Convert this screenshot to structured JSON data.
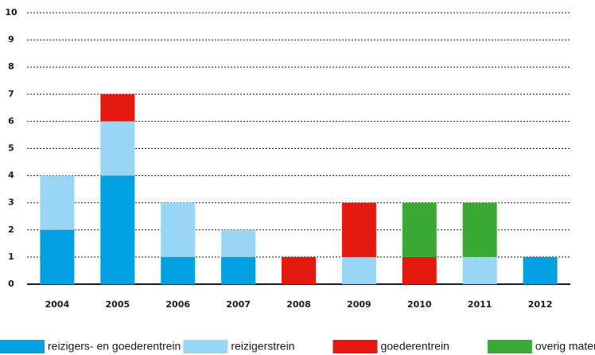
{
  "chart_data": {
    "type": "stacked-bar",
    "categories": [
      "2004",
      "2005",
      "2006",
      "2007",
      "2008",
      "2009",
      "2010",
      "2011",
      "2012"
    ],
    "series": [
      {
        "name": "reizigers- en goederentrein",
        "color": "#00a0e2",
        "values": [
          2,
          4,
          1,
          1,
          0,
          0,
          0,
          0,
          1
        ]
      },
      {
        "name": "reizigerstrein",
        "color": "#99d5f4",
        "values": [
          2,
          2,
          2,
          1,
          0,
          1,
          0,
          1,
          0
        ]
      },
      {
        "name": "goederentrein",
        "color": "#e3190f",
        "values": [
          0,
          1,
          0,
          0,
          1,
          2,
          1,
          0,
          0
        ]
      },
      {
        "name": "overig materieel",
        "color": "#3aa935",
        "values": [
          0,
          0,
          0,
          0,
          0,
          0,
          2,
          2,
          0
        ]
      }
    ],
    "ylim": [
      0,
      10
    ],
    "yticks": [
      0,
      1,
      2,
      3,
      4,
      5,
      6,
      7,
      8,
      9,
      10
    ],
    "grid": true,
    "legend": "bottom"
  }
}
